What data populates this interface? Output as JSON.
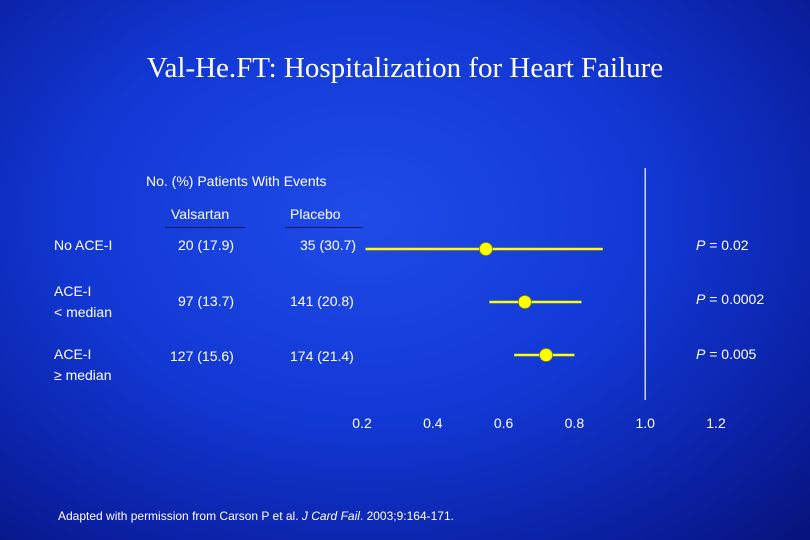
{
  "title": "Val-He.FT: Hospitalization for Heart Failure",
  "table": {
    "heading": "No. (%) Patients With Events",
    "col_valsartan": "Valsartan",
    "col_placebo": "Placebo",
    "rows": [
      {
        "label_line1": "No ACE-I",
        "label_line2": "",
        "valsartan": "20 (17.9)",
        "placebo": "35 (30.7)",
        "p_label": "P",
        "p_value": " = 0.02"
      },
      {
        "label_line1": "ACE-I",
        "label_line2": "< median",
        "valsartan": "97 (13.7)",
        "placebo": "141 (20.8)",
        "p_label": "P",
        "p_value": " = 0.0002"
      },
      {
        "label_line1": "ACE-I",
        "label_line2": "≥ median",
        "valsartan": "127 (15.6)",
        "placebo": "174 (21.4)",
        "p_label": "P",
        "p_value": " = 0.005"
      }
    ]
  },
  "footnote": {
    "prefix": "Adapted with permission from Carson P et al. ",
    "journal": "J Card Fail",
    "suffix": ". 2003;9:164-171."
  },
  "colors": {
    "background": "#1238d4",
    "ci_line": "#ffff00",
    "point": "#ffff00",
    "reference_line": "#ffffff",
    "text": "#ffffff"
  },
  "chart_data": {
    "type": "forest",
    "x_ticks": [
      "0.2",
      "0.4",
      "0.6",
      "0.8",
      "1.0",
      "1.2"
    ],
    "xlim": [
      0.2,
      1.2
    ],
    "reference_line": 1.0,
    "series": [
      {
        "estimate": 0.55,
        "ci_low": 0.21,
        "ci_high": 0.88
      },
      {
        "estimate": 0.66,
        "ci_low": 0.56,
        "ci_high": 0.82
      },
      {
        "estimate": 0.72,
        "ci_low": 0.63,
        "ci_high": 0.8
      }
    ]
  }
}
